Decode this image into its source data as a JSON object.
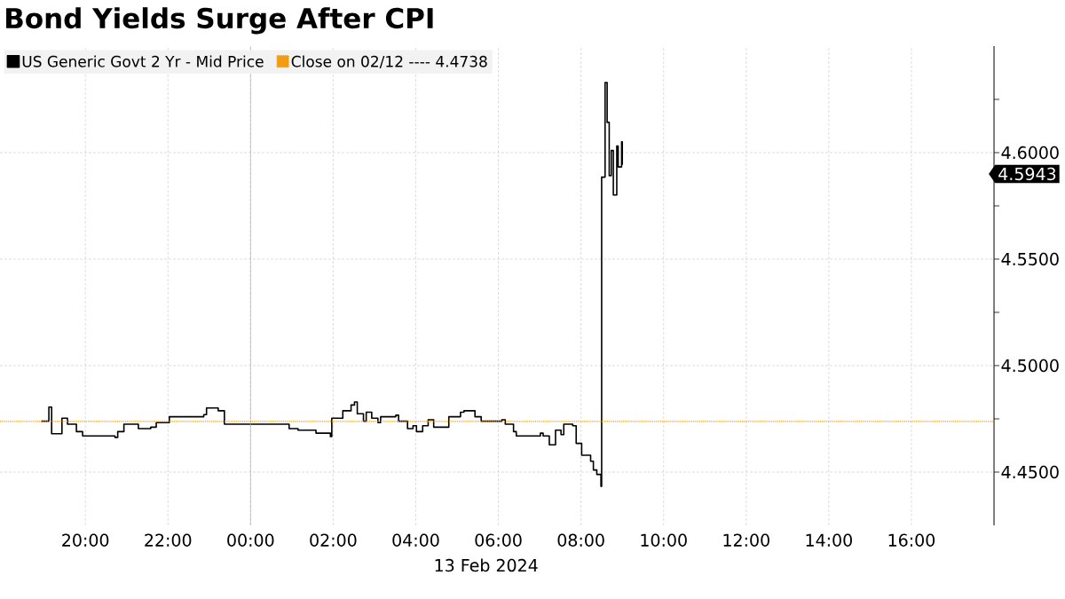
{
  "chart_data": {
    "type": "step",
    "title": "Bond Yields Surge After CPI",
    "xlabel": "13 Feb 2024",
    "x": [
      "2024-02-12T18:56",
      "2024-02-12T19:07",
      "2024-02-12T19:11",
      "2024-02-12T19:26",
      "2024-02-12T19:34",
      "2024-02-12T19:47",
      "2024-02-12T19:56",
      "2024-02-12T20:43",
      "2024-02-12T20:47",
      "2024-02-12T20:56",
      "2024-02-12T21:17",
      "2024-02-12T21:35",
      "2024-02-12T21:43",
      "2024-02-12T22:02",
      "2024-02-12T22:52",
      "2024-02-12T22:56",
      "2024-02-12T23:13",
      "2024-02-12T23:22",
      "2024-02-13T00:09",
      "2024-02-13T00:56",
      "2024-02-13T01:09",
      "2024-02-13T01:35",
      "2024-02-13T01:56",
      "2024-02-13T01:58",
      "2024-02-13T02:14",
      "2024-02-13T02:26",
      "2024-02-13T02:31",
      "2024-02-13T02:35",
      "2024-02-13T02:44",
      "2024-02-13T02:48",
      "2024-02-13T02:56",
      "2024-02-13T03:05",
      "2024-02-13T03:09",
      "2024-02-13T03:31",
      "2024-02-13T03:35",
      "2024-02-13T03:48",
      "2024-02-13T03:56",
      "2024-02-13T04:01",
      "2024-02-13T04:10",
      "2024-02-13T04:18",
      "2024-02-13T04:26",
      "2024-02-13T04:44",
      "2024-02-13T04:48",
      "2024-02-13T05:05",
      "2024-02-13T05:10",
      "2024-02-13T05:26",
      "2024-02-13T05:35",
      "2024-02-13T06:05",
      "2024-02-13T06:10",
      "2024-02-13T06:22",
      "2024-02-13T06:26",
      "2024-02-13T07:01",
      "2024-02-13T07:05",
      "2024-02-13T07:14",
      "2024-02-13T07:23",
      "2024-02-13T07:31",
      "2024-02-13T07:35",
      "2024-02-13T07:48",
      "2024-02-13T07:53",
      "2024-02-13T08:01",
      "2024-02-13T08:14",
      "2024-02-13T08:18",
      "2024-02-13T08:23",
      "2024-02-13T08:29",
      "2024-02-13T08:30",
      "2024-02-13T08:35",
      "2024-02-13T08:38",
      "2024-02-13T08:41",
      "2024-02-13T08:44",
      "2024-02-13T08:47",
      "2024-02-13T08:52",
      "2024-02-13T08:54",
      "2024-02-13T08:59",
      "2024-02-13T09:00"
    ],
    "series": [
      {
        "name": "US Generic Govt 2 Yr - Mid Price",
        "color": "#000000",
        "values": [
          4.4739,
          4.4805,
          4.468,
          4.4753,
          4.4725,
          4.469,
          4.467,
          4.4663,
          4.469,
          4.4725,
          4.4704,
          4.4711,
          4.4732,
          4.476,
          4.477,
          4.4801,
          4.4788,
          4.4725,
          4.4725,
          4.4704,
          4.4697,
          4.4683,
          4.4667,
          4.4753,
          4.4788,
          4.4815,
          4.4829,
          4.4774,
          4.4739,
          4.4781,
          4.4753,
          4.4732,
          4.476,
          4.4767,
          4.4739,
          4.4704,
          4.4718,
          4.469,
          4.4718,
          4.4746,
          4.4711,
          4.4711,
          4.476,
          4.4781,
          4.4788,
          4.476,
          4.4739,
          4.4746,
          4.4725,
          4.469,
          4.467,
          4.4683,
          4.467,
          4.4628,
          4.4697,
          4.4676,
          4.4725,
          4.4718,
          4.4635,
          4.4579,
          4.4551,
          4.451,
          4.4489,
          4.4433,
          4.5885,
          4.6329,
          4.6142,
          4.5892,
          4.601,
          4.5801,
          4.6031,
          4.5933,
          4.6051,
          4.5943
        ]
      }
    ],
    "xlim": [
      "2024-02-12T17:56",
      "2024-02-13T18:00"
    ],
    "ylim": [
      4.425,
      4.65
    ],
    "xticks": [
      {
        "value": "2024-02-12T20:00",
        "label": "20:00"
      },
      {
        "value": "2024-02-12T22:00",
        "label": "22:00"
      },
      {
        "value": "2024-02-13T00:00",
        "label": "00:00"
      },
      {
        "value": "2024-02-13T02:00",
        "label": "02:00"
      },
      {
        "value": "2024-02-13T04:00",
        "label": "04:00"
      },
      {
        "value": "2024-02-13T06:00",
        "label": "06:00"
      },
      {
        "value": "2024-02-13T08:00",
        "label": "08:00"
      },
      {
        "value": "2024-02-13T10:00",
        "label": "10:00"
      },
      {
        "value": "2024-02-13T12:00",
        "label": "12:00"
      },
      {
        "value": "2024-02-13T14:00",
        "label": "14:00"
      },
      {
        "value": "2024-02-13T16:00",
        "label": "16:00"
      }
    ],
    "yticks": [
      {
        "value": 4.45,
        "label": "4.4500"
      },
      {
        "value": 4.475,
        "label": null
      },
      {
        "value": 4.5,
        "label": "4.5000"
      },
      {
        "value": 4.525,
        "label": null
      },
      {
        "value": 4.55,
        "label": "4.5500"
      },
      {
        "value": 4.575,
        "label": null
      },
      {
        "value": 4.6,
        "label": "4.6000"
      },
      {
        "value": 4.625,
        "label": null
      }
    ],
    "ref_lines": [
      {
        "axis": "y",
        "value": 4.4738,
        "label": "Close on 02/12 ---- 4.4738",
        "color": "#f39c12",
        "line_style": "dotted"
      },
      {
        "axis": "x",
        "value": "2024-02-13T00:00",
        "color": "#b0b0b0",
        "line_style": "solid"
      }
    ],
    "annotations": [
      "4.5943"
    ],
    "grid": true,
    "legend": "top left",
    "marker": "none",
    "line_style": "solid"
  }
}
